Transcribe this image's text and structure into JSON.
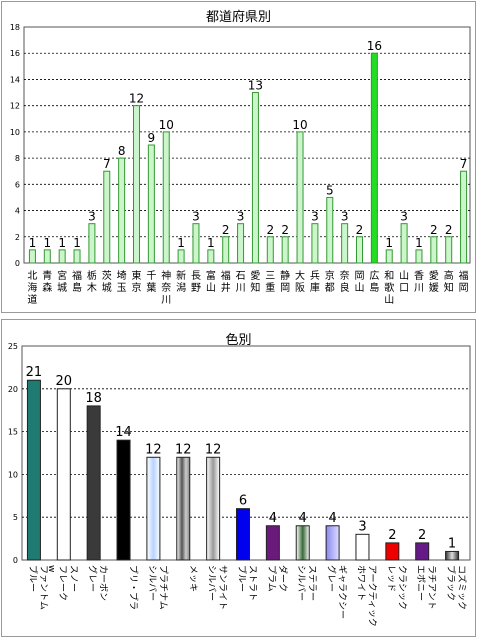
{
  "charts": [
    {
      "title": "都道府県別",
      "chart_data": {
        "type": "bar",
        "title": "都道府県別",
        "xlabel": "",
        "ylabel": "",
        "ylim": [
          0,
          18
        ],
        "yticks": [
          0,
          2,
          4,
          6,
          8,
          10,
          12,
          14,
          16,
          18
        ],
        "grid": true,
        "categories": [
          "北海道",
          "青森",
          "宮城",
          "福島",
          "栃木",
          "茨城",
          "埼玉",
          "東京",
          "千葉",
          "神奈川",
          "新潟",
          "長野",
          "富山",
          "福井",
          "石川",
          "愛知",
          "三重",
          "静岡",
          "大阪",
          "兵庫",
          "京都",
          "奈良",
          "岡山",
          "広島",
          "和歌山",
          "山口",
          "香川",
          "愛媛",
          "高知",
          "福岡"
        ],
        "values": [
          1,
          1,
          1,
          1,
          3,
          7,
          8,
          12,
          9,
          10,
          1,
          3,
          1,
          2,
          3,
          13,
          2,
          2,
          10,
          3,
          5,
          3,
          2,
          16,
          1,
          3,
          1,
          2,
          2,
          7
        ],
        "bar_colors": [
          "#ccf5cc",
          "#ccf5cc",
          "#ccf5cc",
          "#ccf5cc",
          "#ccf5cc",
          "#ccf5cc",
          "#ccf5cc",
          "#ccf5cc",
          "#ccf5cc",
          "#ccf5cc",
          "#ccf5cc",
          "#ccf5cc",
          "#ccf5cc",
          "#ccf5cc",
          "#ccf5cc",
          "#ccf5cc",
          "#ccf5cc",
          "#ccf5cc",
          "#ccf5cc",
          "#ccf5cc",
          "#ccf5cc",
          "#ccf5cc",
          "#ccf5cc",
          "#22dd22",
          "#ccf5cc",
          "#ccf5cc",
          "#ccf5cc",
          "#ccf5cc",
          "#ccf5cc",
          "#ccf5cc"
        ],
        "bar_stroke": "#339933"
      }
    },
    {
      "title": "色別",
      "chart_data": {
        "type": "bar",
        "title": "色別",
        "xlabel": "",
        "ylabel": "",
        "ylim": [
          0,
          25
        ],
        "yticks": [
          0,
          5,
          10,
          15,
          20,
          25
        ],
        "grid": true,
        "categories": [
          "ファントム ブルー",
          "スノー フレーク w",
          "カーボン グレー",
          "ブリ・ブラ",
          "プラチナム シルバー",
          "メッキ",
          "サンライト シルバー",
          "ストラト ブルー",
          "ダーク プラム",
          "ステラー シルバー",
          "ギャラクシー グレー",
          "アークティック ホワイト",
          "クラシック レッド",
          "ラチアント エボニー",
          "コズミック ブラック"
        ],
        "values": [
          21,
          20,
          18,
          14,
          12,
          12,
          12,
          6,
          4,
          4,
          4,
          3,
          2,
          2,
          1
        ],
        "bar_colors": [
          "#1f7a72",
          "#ffffff",
          "#3a3a3a",
          "#000000",
          "#dce8ff",
          "#aaaaaa",
          "#f0f0f0",
          "#0000ee",
          "#6a1a7a",
          "#dde8dd",
          "#a8a8f0",
          "#ffffff",
          "#ee0000",
          "#661a88",
          "#999999"
        ]
      }
    }
  ]
}
